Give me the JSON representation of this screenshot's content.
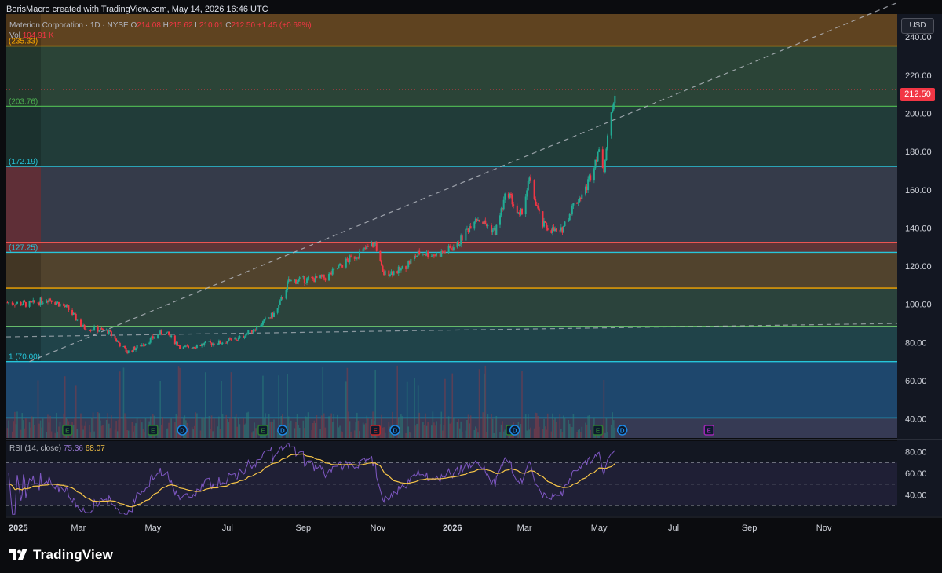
{
  "header": {
    "attribution": "BorisMacro created with TradingView.com, May 14, 2026 16:46 UTC"
  },
  "legend": {
    "symbol": "Materion Corporation · 1D · NYSE",
    "open_label": "O",
    "open": "214.08",
    "high_label": "H",
    "high": "215.62",
    "low_label": "L",
    "low": "210.01",
    "close_label": "C",
    "close": "212.50",
    "change": "+1.45 (+0.69%)",
    "vol_label": "Vol",
    "vol": "104.91 K",
    "rsi_label": "RSI (14, close)",
    "rsi_value": "75.36",
    "rsi_ma": "68.07"
  },
  "currency": "USD",
  "current_price": "212.50",
  "branding": {
    "name": "TradingView"
  },
  "colors": {
    "up": "#22ab94",
    "down": "#f23645",
    "rsi": "#7e57c2",
    "rsi_ma": "#f7c548",
    "volume": "#2a6f8f",
    "background": "#131722"
  },
  "chart_data": {
    "type": "candlestick",
    "symbol": "Materion Corporation",
    "timeframe": "1D",
    "exchange": "NYSE",
    "ylim": [
      30,
      252
    ],
    "y_ticks": [
      40,
      60,
      80,
      100,
      120,
      140,
      160,
      180,
      200,
      220,
      240
    ],
    "x_ticks": [
      "2025",
      "Mar",
      "May",
      "Jul",
      "Sep",
      "Nov",
      "2026",
      "Mar",
      "May",
      "Jul",
      "Sep",
      "Nov"
    ],
    "fib_levels": [
      {
        "label": "(235.33)",
        "value": 235.33,
        "color": "#f7a600"
      },
      {
        "label": "(203.76)",
        "value": 203.76,
        "color": "#4caf50"
      },
      {
        "label": "(172.19)",
        "value": 172.19,
        "color": "#26c6da"
      },
      {
        "label": "",
        "value": 132.5,
        "color": "#ef5350"
      },
      {
        "label": "(127.25)",
        "value": 127.25,
        "color": "#26c6da"
      },
      {
        "label": "",
        "value": 108.5,
        "color": "#f7a600"
      },
      {
        "label": "",
        "value": 88.5,
        "color": "#66bb6a"
      },
      {
        "label": "1 (70.00)",
        "value": 70.0,
        "color": "#26c6da"
      },
      {
        "label": "",
        "value": 40.5,
        "color": "#26c6da"
      }
    ],
    "price_path": [
      {
        "date": "2025-01-02",
        "close": 101
      },
      {
        "date": "2025-01-20",
        "close": 100
      },
      {
        "date": "2025-02-05",
        "close": 103
      },
      {
        "date": "2025-02-20",
        "close": 98
      },
      {
        "date": "2025-03-05",
        "close": 88
      },
      {
        "date": "2025-03-25",
        "close": 86
      },
      {
        "date": "2025-04-10",
        "close": 75
      },
      {
        "date": "2025-04-25",
        "close": 80
      },
      {
        "date": "2025-05-10",
        "close": 86
      },
      {
        "date": "2025-05-25",
        "close": 77
      },
      {
        "date": "2025-06-10",
        "close": 79
      },
      {
        "date": "2025-06-25",
        "close": 80
      },
      {
        "date": "2025-07-10",
        "close": 82
      },
      {
        "date": "2025-07-25",
        "close": 88
      },
      {
        "date": "2025-08-10",
        "close": 96
      },
      {
        "date": "2025-08-20",
        "close": 112
      },
      {
        "date": "2025-09-05",
        "close": 113
      },
      {
        "date": "2025-09-20",
        "close": 114
      },
      {
        "date": "2025-10-05",
        "close": 122
      },
      {
        "date": "2025-10-20",
        "close": 128
      },
      {
        "date": "2025-10-30",
        "close": 132
      },
      {
        "date": "2025-11-05",
        "close": 116
      },
      {
        "date": "2025-11-20",
        "close": 118
      },
      {
        "date": "2025-12-05",
        "close": 127
      },
      {
        "date": "2025-12-20",
        "close": 126
      },
      {
        "date": "2026-01-05",
        "close": 131
      },
      {
        "date": "2026-01-20",
        "close": 146
      },
      {
        "date": "2026-02-05",
        "close": 138
      },
      {
        "date": "2026-02-15",
        "close": 160
      },
      {
        "date": "2026-02-25",
        "close": 145
      },
      {
        "date": "2026-03-05",
        "close": 165
      },
      {
        "date": "2026-03-15",
        "close": 142
      },
      {
        "date": "2026-03-30",
        "close": 137
      },
      {
        "date": "2026-04-10",
        "close": 152
      },
      {
        "date": "2026-04-20",
        "close": 160
      },
      {
        "date": "2026-04-30",
        "close": 180
      },
      {
        "date": "2026-05-05",
        "close": 172
      },
      {
        "date": "2026-05-10",
        "close": 195
      },
      {
        "date": "2026-05-14",
        "close": 212.5
      }
    ],
    "volume_ratio_relative": "relative",
    "rsi": {
      "label": "RSI (14, close)",
      "value": 75.36,
      "ma": 68.07,
      "y_ticks": [
        40,
        60,
        80
      ],
      "bands": [
        30,
        50,
        70
      ]
    }
  }
}
